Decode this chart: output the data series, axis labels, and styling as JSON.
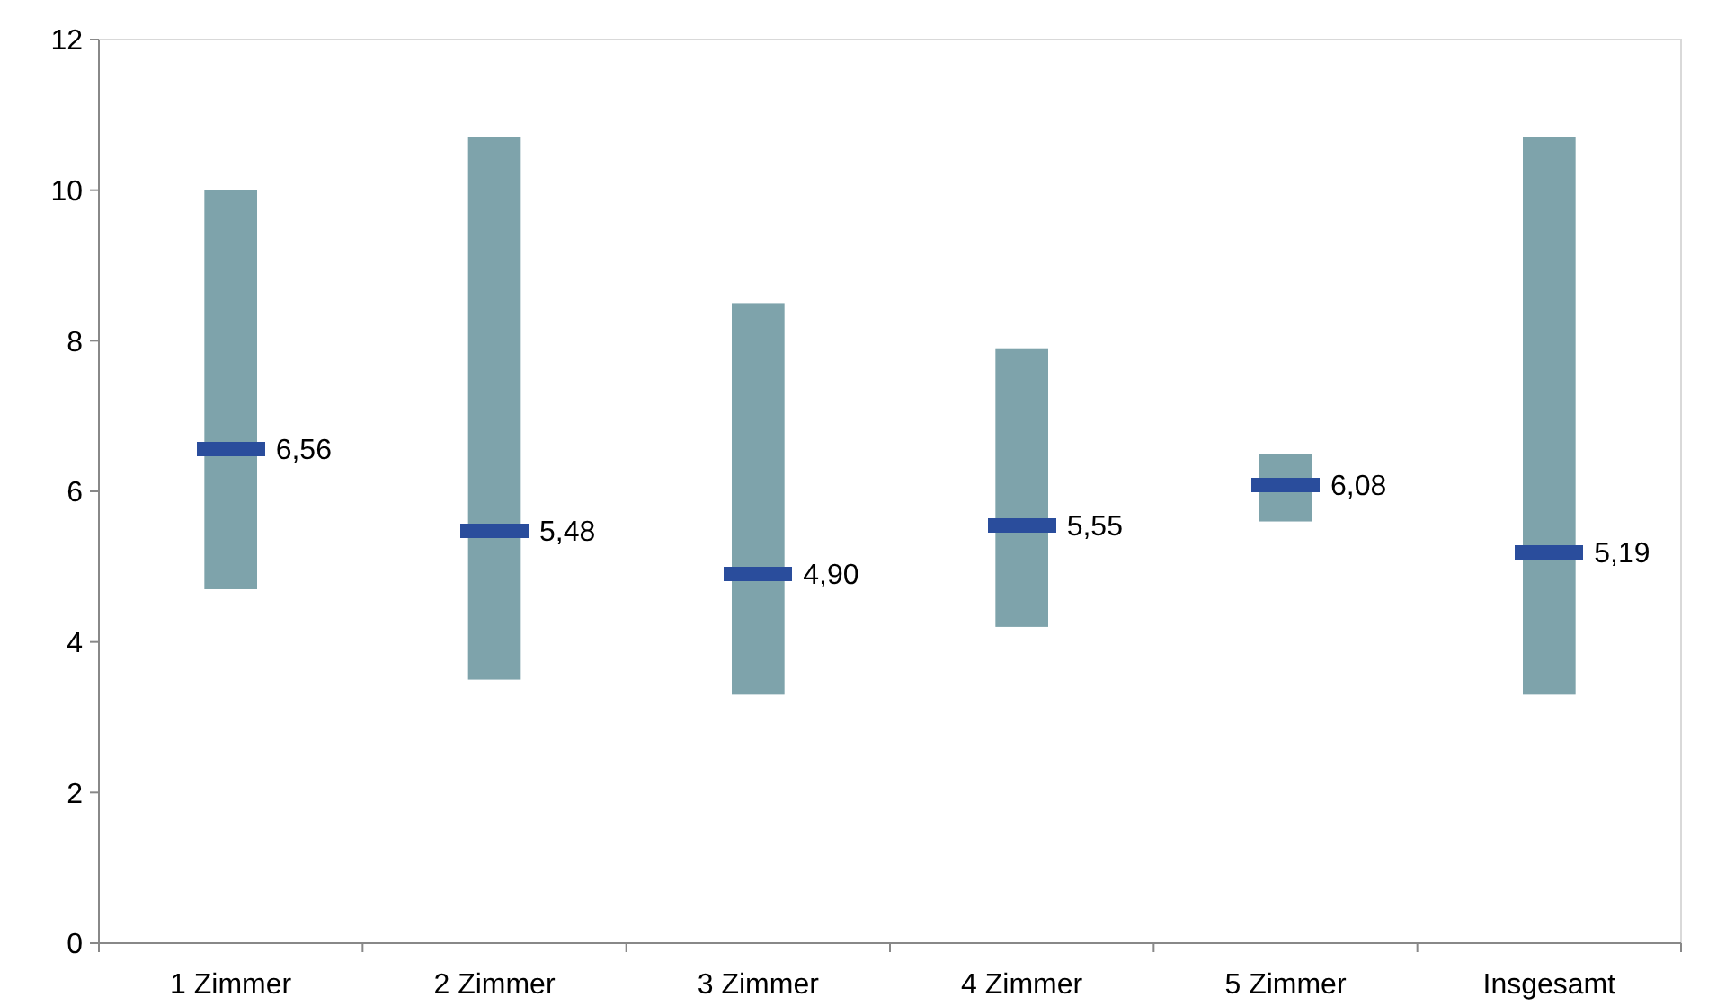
{
  "chart_data": {
    "type": "bar",
    "categories": [
      "1 Zimmer",
      "2 Zimmer",
      "3 Zimmer",
      "4 Zimmer",
      "5 Zimmer",
      "Insgesamt"
    ],
    "series": [
      {
        "type": "bar",
        "color": "#7ea3ab",
        "base": [
          4.7,
          3.5,
          3.3,
          4.2,
          5.6,
          3.3
        ],
        "values": [
          5.3,
          7.2,
          5.2,
          3.7,
          0.9,
          7.4
        ]
      },
      {
        "type": "scatter",
        "color": "#2a4d9c",
        "marker": "square",
        "values": [
          6.56,
          5.48,
          4.9,
          5.55,
          6.08,
          5.19
        ],
        "value_labels": [
          "6,56",
          "5,48",
          "4,90",
          "5,55",
          "6,08",
          "5,19"
        ]
      }
    ],
    "ylim": [
      0,
      12
    ],
    "yticks": [
      0,
      2,
      4,
      6,
      8,
      10,
      12
    ],
    "grid": false
  }
}
